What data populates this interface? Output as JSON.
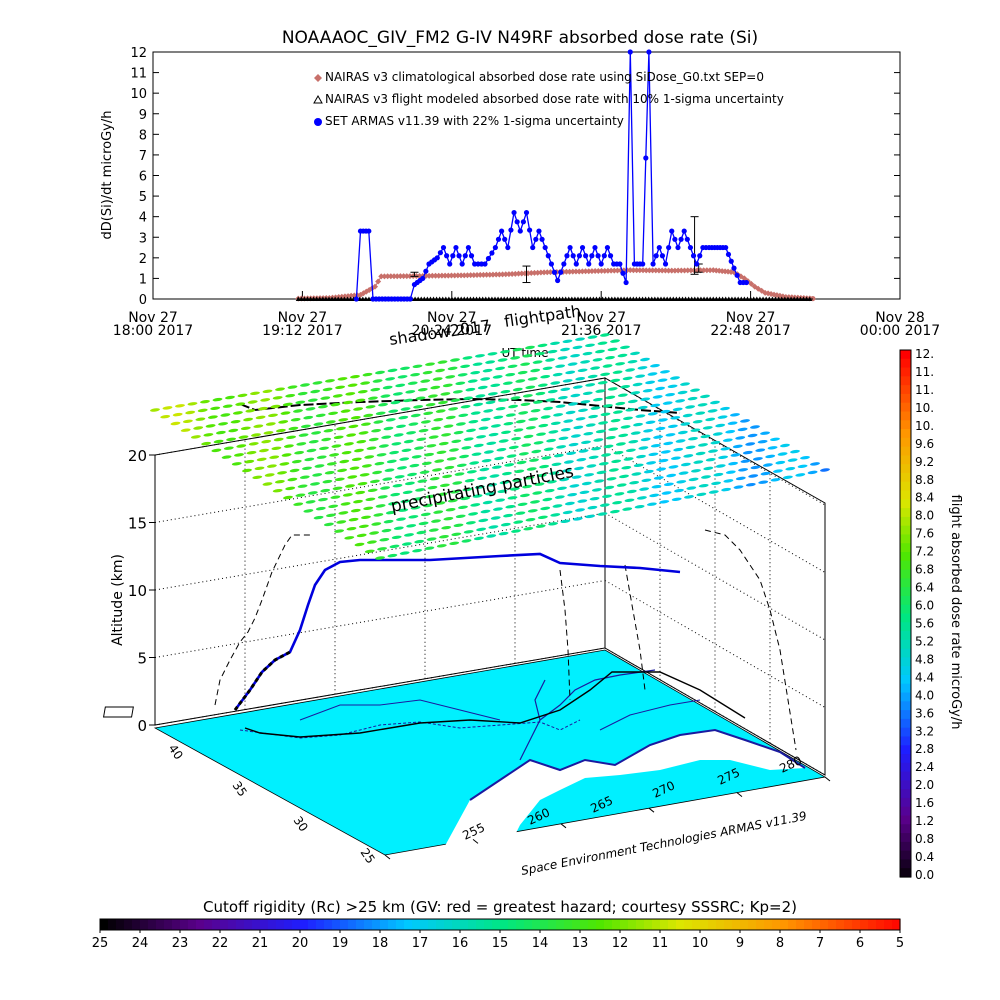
{
  "colors": {
    "climatological": "#c8706a",
    "flight_model": "#000000",
    "armas": "#0000ff",
    "ground": "#00f0ff",
    "coast": "#1a1aa0",
    "track": "#000000"
  },
  "chart_data": [
    {
      "type": "line",
      "title": "NOAAAOC_GIV_FM2 G-IV   N49RF  absorbed dose rate (Si)",
      "xlabel": "UT time",
      "ylabel": "dD(Si)/dt microGy/h",
      "ylim": [
        0,
        12
      ],
      "yticks": [
        "0",
        "1",
        "2",
        "3",
        "4",
        "5",
        "6",
        "7",
        "8",
        "9",
        "10",
        "11",
        "12"
      ],
      "xticks": [
        {
          "line1": "Nov 27",
          "line2": "18:00 2017",
          "t": 0
        },
        {
          "line1": "Nov 27",
          "line2": "19:12 2017",
          "t": 72
        },
        {
          "line1": "Nov 27",
          "line2": "20:24 2017",
          "t": 144
        },
        {
          "line1": "Nov 27",
          "line2": "21:36 2017",
          "t": 216
        },
        {
          "line1": "Nov 27",
          "line2": "22:48 2017",
          "t": 288
        },
        {
          "line1": "Nov 28",
          "line2": "00:00 2017",
          "t": 360
        }
      ],
      "xlim_minutes": [
        0,
        360
      ],
      "legend_position": "top",
      "series": [
        {
          "name": "NAIRAS v3 climatological absorbed dose rate using SiDose_G0.txt SEP=0",
          "marker": "diamond",
          "points": [
            [
              70,
              0.02
            ],
            [
              85,
              0.05
            ],
            [
              100,
              0.2
            ],
            [
              107,
              0.6
            ],
            [
              110,
              1.1
            ],
            [
              130,
              1.12
            ],
            [
              150,
              1.15
            ],
            [
              170,
              1.2
            ],
            [
              190,
              1.3
            ],
            [
              210,
              1.35
            ],
            [
              230,
              1.4
            ],
            [
              250,
              1.38
            ],
            [
              270,
              1.4
            ],
            [
              280,
              1.3
            ],
            [
              285,
              1.0
            ],
            [
              290,
              0.6
            ],
            [
              295,
              0.3
            ],
            [
              305,
              0.1
            ],
            [
              318,
              0.02
            ]
          ]
        },
        {
          "name": "NAIRAS v3 flight modeled absorbed dose rate with 10% 1-sigma uncertainty",
          "marker": "triangle",
          "points": [
            [
              70,
              0.0
            ],
            [
              110,
              0.0
            ],
            [
              150,
              0.0
            ],
            [
              190,
              0.0
            ],
            [
              230,
              0.0
            ],
            [
              270,
              0.0
            ],
            [
              318,
              0.0
            ]
          ],
          "error_bars": [
            [
              126,
              1.1,
              1.3
            ],
            [
              180,
              0.8,
              1.6
            ],
            [
              261,
              1.2,
              4.0
            ],
            [
              263,
              1.3,
              1.7
            ]
          ]
        },
        {
          "name": "SET ARMAS v11.39 with 22% 1-sigma uncertainty",
          "marker": "circle",
          "points": [
            [
              98,
              0
            ],
            [
              100,
              3.3
            ],
            [
              104,
              3.3
            ],
            [
              106,
              0
            ],
            [
              124,
              0
            ],
            [
              126,
              0.7
            ],
            [
              130,
              1.0
            ],
            [
              133,
              1.7
            ],
            [
              137,
              2.0
            ],
            [
              140,
              2.5
            ],
            [
              143,
              1.7
            ],
            [
              146,
              2.5
            ],
            [
              149,
              1.7
            ],
            [
              152,
              2.5
            ],
            [
              155,
              1.7
            ],
            [
              160,
              1.7
            ],
            [
              165,
              2.5
            ],
            [
              168,
              3.3
            ],
            [
              171,
              2.5
            ],
            [
              174,
              4.2
            ],
            [
              177,
              3.3
            ],
            [
              180,
              4.2
            ],
            [
              183,
              2.5
            ],
            [
              186,
              3.3
            ],
            [
              189,
              2.5
            ],
            [
              192,
              1.7
            ],
            [
              195,
              0.9
            ],
            [
              198,
              1.7
            ],
            [
              201,
              2.5
            ],
            [
              204,
              1.7
            ],
            [
              207,
              2.5
            ],
            [
              210,
              1.7
            ],
            [
              213,
              2.5
            ],
            [
              216,
              1.7
            ],
            [
              219,
              2.5
            ],
            [
              222,
              1.7
            ],
            [
              225,
              1.7
            ],
            [
              228,
              0.8
            ],
            [
              230,
              12
            ],
            [
              232,
              1.7
            ],
            [
              236,
              1.7
            ],
            [
              239,
              12
            ],
            [
              241,
              1.7
            ],
            [
              244,
              2.5
            ],
            [
              247,
              1.7
            ],
            [
              250,
              3.3
            ],
            [
              253,
              2.5
            ],
            [
              256,
              3.3
            ],
            [
              259,
              2.5
            ],
            [
              262,
              1.7
            ],
            [
              265,
              2.5
            ],
            [
              268,
              2.5
            ],
            [
              272,
              2.5
            ],
            [
              276,
              2.5
            ],
            [
              280,
              1.5
            ],
            [
              283,
              0.8
            ],
            [
              286,
              0.8
            ]
          ]
        }
      ]
    },
    {
      "type": "scatter",
      "subtype": "3d-flight-track",
      "ylabel": "Altitude (km)",
      "zticks": [
        "0",
        "5",
        "10",
        "15",
        "20"
      ],
      "lat_ticks": [
        "25",
        "30",
        "35",
        "40"
      ],
      "lon_ticks": [
        "255",
        "260",
        "265",
        "270",
        "275",
        "280"
      ],
      "annotations": [
        "precipitating particles",
        "shadow2017",
        "flightpath",
        "Space Environment Technologies ARMAS v11.39"
      ],
      "colorbar": {
        "label": "flight absorbed dose rate microGy/h",
        "ticks": [
          "12.",
          "11.",
          "11.",
          "10.",
          "10.",
          "9.6",
          "9.2",
          "8.8",
          "8.4",
          "8.0",
          "7.6",
          "7.2",
          "6.8",
          "6.4",
          "6.0",
          "5.6",
          "5.2",
          "4.8",
          "4.4",
          "4.0",
          "3.6",
          "3.2",
          "2.8",
          "2.4",
          "2.0",
          "1.6",
          "1.2",
          "0.8",
          "0.4",
          "0.0"
        ],
        "range": [
          0,
          12
        ]
      }
    },
    {
      "type": "heatmap",
      "subtype": "colorbar",
      "title": "Cutoff rigidity (Rc) >25 km (GV: red = greatest hazard; courtesy SSSRC; Kp=2)",
      "ticks": [
        "25",
        "24",
        "23",
        "22",
        "21",
        "20",
        "19",
        "18",
        "17",
        "16",
        "15",
        "14",
        "13",
        "12",
        "11",
        "10",
        "9",
        "8",
        "7",
        "6",
        "5"
      ],
      "range": [
        25,
        5
      ]
    }
  ]
}
